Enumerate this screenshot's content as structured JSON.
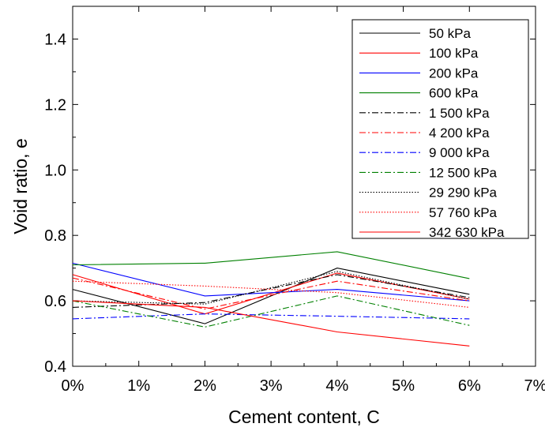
{
  "chart_data": {
    "type": "line",
    "title": "",
    "xlabel": "Cement content, C",
    "ylabel": "Void ratio, e",
    "xlim": [
      0,
      7
    ],
    "ylim": [
      0.4,
      1.5
    ],
    "xticks": [
      0,
      1,
      2,
      3,
      4,
      5,
      6,
      7
    ],
    "xtick_labels": [
      "0%",
      "1%",
      "2%",
      "3%",
      "4%",
      "5%",
      "6%",
      "7%"
    ],
    "yticks": [
      0.4,
      0.6,
      0.8,
      1.0,
      1.2,
      1.4
    ],
    "ytick_labels": [
      "0.4",
      "0.6",
      "0.8",
      "1.0",
      "1.2",
      "1.4"
    ],
    "grid": false,
    "legend_position": "top-right",
    "x": [
      0,
      2,
      4,
      6
    ],
    "series": [
      {
        "name": "50 kPa",
        "values": [
          0.635,
          0.53,
          0.7,
          0.62
        ],
        "color": "#000000",
        "dash": "solid"
      },
      {
        "name": "100  kPa",
        "values": [
          0.68,
          0.56,
          0.685,
          0.605
        ],
        "color": "#ff0000",
        "dash": "solid"
      },
      {
        "name": "200  kPa",
        "values": [
          0.715,
          0.615,
          0.635,
          0.6
        ],
        "color": "#0000ff",
        "dash": "solid"
      },
      {
        "name": "600  kPa",
        "values": [
          0.71,
          0.715,
          0.75,
          0.668
        ],
        "color": "#008000",
        "dash": "solid"
      },
      {
        "name": "1 500  kPa",
        "values": [
          0.58,
          0.595,
          0.68,
          0.61
        ],
        "color": "#000000",
        "dash": "dashdot"
      },
      {
        "name": "4 200  kPa",
        "values": [
          0.67,
          0.575,
          0.66,
          0.6
        ],
        "color": "#ff0000",
        "dash": "dashdot"
      },
      {
        "name": "9 000  kPa",
        "values": [
          0.545,
          0.56,
          0.553,
          0.545
        ],
        "color": "#0000ff",
        "dash": "dashdot"
      },
      {
        "name": "12 500  kPa",
        "values": [
          0.6,
          0.52,
          0.615,
          0.525
        ],
        "color": "#008000",
        "dash": "dashdot"
      },
      {
        "name": "29 290  kPa",
        "values": [
          0.6,
          0.59,
          0.69,
          0.605
        ],
        "color": "#000000",
        "dash": "dotted"
      },
      {
        "name": "57 760  kPa",
        "values": [
          0.66,
          0.645,
          0.625,
          0.58
        ],
        "color": "#ff0000",
        "dash": "dotted"
      },
      {
        "name": "342 630  kPa",
        "values": [
          0.6,
          0.58,
          0.505,
          0.462
        ],
        "color": "#ff0000",
        "dash": "solid"
      }
    ]
  }
}
